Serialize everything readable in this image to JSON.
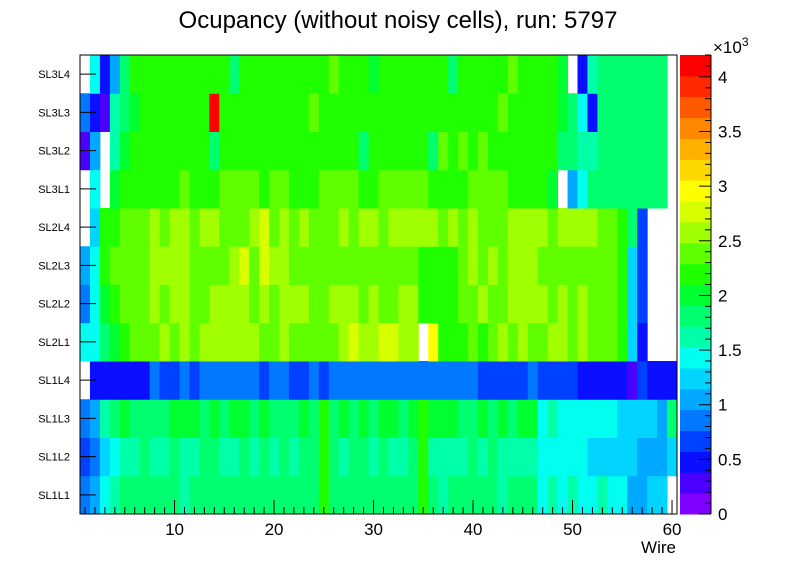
{
  "chart_data": {
    "type": "heatmap",
    "title": "Ocupancy (without noisy cells), run: 5797",
    "xlabel": "Wire",
    "ylabel": "",
    "xlim": [
      0.5,
      60.5
    ],
    "x_ticks": [
      10,
      20,
      30,
      40,
      50,
      60
    ],
    "rows": [
      "SL1L1",
      "SL1L2",
      "SL1L3",
      "SL1L4",
      "SL2L1",
      "SL2L2",
      "SL2L3",
      "SL2L4",
      "SL3L1",
      "SL3L2",
      "SL3L3",
      "SL3L4"
    ],
    "zlim": [
      0,
      4200
    ],
    "z_multiplier_label": "×10",
    "z_multiplier_exponent": "3",
    "z_ticks": [
      {
        "value": 0,
        "label": "0"
      },
      {
        "value": 500,
        "label": "0.5"
      },
      {
        "value": 1000,
        "label": "1"
      },
      {
        "value": 1500,
        "label": "1.5"
      },
      {
        "value": 2000,
        "label": "2"
      },
      {
        "value": 2500,
        "label": "2.5"
      },
      {
        "value": 3000,
        "label": "3"
      },
      {
        "value": 3500,
        "label": "3.5"
      },
      {
        "value": 4000,
        "label": "4"
      }
    ],
    "palette": [
      "#8000ff",
      "#4a00ff",
      "#0a10ff",
      "#0040ff",
      "#0078ff",
      "#00a8ff",
      "#00d4ff",
      "#00fff0",
      "#00ffa8",
      "#00ff70",
      "#00ff30",
      "#20ff00",
      "#60ff00",
      "#a0ff00",
      "#d8ff00",
      "#ffff00",
      "#ffd800",
      "#ffb000",
      "#ff8800",
      "#ff5a00",
      "#ff2a00",
      "#ff0000"
    ],
    "base_values": [
      1800,
      1700,
      1900,
      800,
      2500,
      2500,
      2500,
      2500,
      2300,
      2200,
      2200,
      2200
    ],
    "cells": {
      "SL1L1": {
        "0": 900,
        "1": 1100,
        "2": 1500,
        "3": 1700,
        "24": 2100,
        "34": 2100,
        "46": 1500,
        "47": 1600,
        "48": 1500,
        "49": 1600,
        "50": 1500,
        "51": 1500,
        "52": 1600,
        "53": 1400,
        "54": 1400,
        "55": 1100,
        "56": 1100,
        "57": 1200,
        "58": 1200,
        "59": null
      },
      "SL1L2": {
        "0": 700,
        "1": 900,
        "2": 1200,
        "3": 1500,
        "24": 2200,
        "34": 2200,
        "46": 1400,
        "47": 1500,
        "48": 1500,
        "49": 1400,
        "50": 1400,
        "51": 1300,
        "52": 1300,
        "53": 1300,
        "54": 1200,
        "55": 1200,
        "56": 1100,
        "57": 1100,
        "58": 1000,
        "59": 1200
      },
      "SL1L3": {
        "0": 800,
        "1": 1000,
        "2": 1700,
        "3": 1800,
        "24": 2100,
        "34": 2100,
        "46": 1500,
        "47": 1600,
        "48": 1500,
        "49": 1500,
        "50": 1500,
        "51": 1400,
        "52": 1400,
        "53": 1400,
        "54": 1300,
        "55": 1300,
        "56": 1200,
        "57": 1200,
        "58": 1000,
        "59": 1900
      },
      "SL1L4": {
        "0": null,
        "1": 500,
        "2": 500,
        "3": 500,
        "4": 500,
        "5": 500,
        "6": 500,
        "7": 800,
        "8": 600,
        "33": 900,
        "34": 800,
        "35": 900,
        "36": 800,
        "37": 800,
        "38": 900,
        "39": 800,
        "40": 700,
        "41": 700,
        "42": 700,
        "43": 700,
        "44": 700,
        "45": 800,
        "46": 700,
        "47": 600,
        "48": 600,
        "49": 600,
        "50": 500,
        "51": 500,
        "52": 500,
        "53": 500,
        "54": 500,
        "55": 300,
        "56": 600,
        "57": 400,
        "58": 400,
        "59": 400
      },
      "SL2L1": {
        "0": 1400,
        "1": 1500,
        "2": 1800,
        "3": 2000,
        "4": 2200,
        "5": 2300,
        "6": 2300,
        "12": 2600,
        "26": 2600,
        "27": 2700,
        "28": 2600,
        "29": 2600,
        "30": 2700,
        "31": 2700,
        "33": 2600,
        "34": null,
        "35": 3000,
        "36": 2100,
        "37": 2200,
        "38": 2200,
        "39": 2300,
        "40": 2200,
        "41": 2400,
        "52": 2400,
        "53": 2300,
        "54": 2200,
        "55": 1300,
        "56": 500,
        "57": null,
        "58": null,
        "59": null
      },
      "SL2L2": {
        "0": 900,
        "1": 1500,
        "2": 2000,
        "3": 2200,
        "4": 2300,
        "5": 2400,
        "6": 2300,
        "34": 2100,
        "35": 2100,
        "36": 2200,
        "37": 2200,
        "38": 2300,
        "52": 2400,
        "53": 2300,
        "54": 2200,
        "55": 1300,
        "56": 600,
        "57": null,
        "58": null,
        "59": null
      },
      "SL2L3": {
        "0": 1000,
        "1": 1500,
        "2": 2100,
        "3": 2300,
        "4": 2400,
        "5": 2400,
        "6": 2400,
        "16": 2800,
        "18": 2800,
        "22": 2400,
        "23": 2400,
        "24": 2400,
        "25": 2400,
        "26": 2400,
        "27": 2400,
        "28": 2400,
        "29": 2400,
        "30": 2400,
        "31": 2400,
        "32": 2400,
        "33": 2400,
        "34": 2200,
        "35": 2200,
        "36": 2200,
        "37": 2200,
        "38": 2300,
        "47": 2300,
        "52": 2300,
        "53": 2300,
        "54": 2200,
        "55": 1300,
        "56": 600,
        "57": null,
        "58": null,
        "59": null
      },
      "SL2L4": {
        "0": null,
        "1": 1300,
        "2": 2100,
        "3": 2200,
        "4": 2300,
        "5": 2400,
        "6": 2400,
        "18": 2800,
        "40": 2400,
        "41": 2400,
        "42": 2400,
        "52": 2300,
        "53": 2300,
        "54": 2100,
        "55": 1800,
        "56": 600,
        "57": null,
        "58": null,
        "59": null
      },
      "SL3L1": {
        "0": null,
        "1": 1500,
        "2": null,
        "3": 2000,
        "4": 2100,
        "5": 2100,
        "6": 2100,
        "47": 2000,
        "48": null,
        "49": 1000,
        "50": 1500,
        "51": 1800,
        "52": 1800,
        "53": 1800,
        "54": 1800,
        "55": 1800,
        "56": 1800,
        "57": 1800,
        "58": 1800,
        "59": null
      },
      "SL3L2": {
        "0": 300,
        "1": 1000,
        "2": null,
        "3": 1700,
        "4": 2000,
        "5": 2100,
        "6": 2100,
        "13": 1900,
        "28": 1900,
        "35": 1800,
        "48": 1800,
        "49": 1800,
        "50": 1600,
        "51": 1700,
        "52": 1800,
        "53": 1800,
        "54": 1800,
        "55": 1800,
        "56": 1800,
        "57": 1800,
        "58": 1800,
        "59": null
      },
      "SL3L3": {
        "0": 800,
        "1": 500,
        "2": 300,
        "3": 1700,
        "4": 1900,
        "5": 2000,
        "6": 2100,
        "13": 4200,
        "48": 2000,
        "49": 1800,
        "50": 1400,
        "51": 400,
        "52": 1800,
        "53": 1800,
        "54": 1800,
        "55": 1800,
        "56": 1900,
        "57": 1800,
        "58": 1800,
        "59": null
      },
      "SL3L4": {
        "0": null,
        "1": 1400,
        "2": 500,
        "3": 1000,
        "4": 1800,
        "5": 2100,
        "6": 2100,
        "15": 1900,
        "29": 2000,
        "37": 1900,
        "48": 2000,
        "49": null,
        "50": 500,
        "51": 1700,
        "52": 1800,
        "53": 1800,
        "54": 1800,
        "55": 1800,
        "56": 1800,
        "57": 1800,
        "58": 1800,
        "59": null
      }
    }
  }
}
